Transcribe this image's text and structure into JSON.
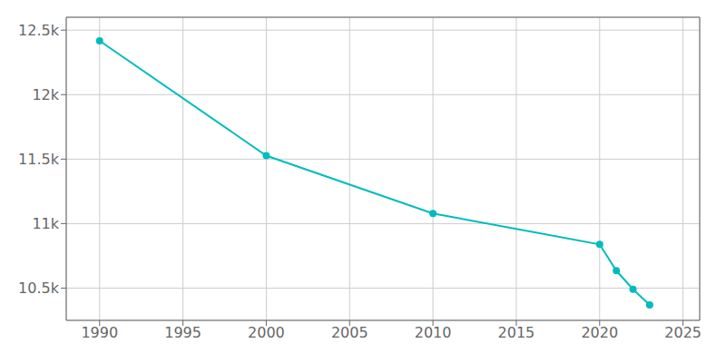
{
  "chart_data": {
    "type": "line",
    "x": [
      1990,
      2000,
      2010,
      2020,
      2021,
      2022,
      2023
    ],
    "values": [
      12417,
      11527,
      11079,
      10839,
      10635,
      10491,
      10370
    ],
    "color": "#00BBBF",
    "marker": "circle",
    "xlim": [
      1988,
      2026
    ],
    "ylim": [
      10250,
      12600
    ],
    "xticks": [
      1990,
      1995,
      2000,
      2005,
      2010,
      2015,
      2020,
      2025
    ],
    "yticks": [
      {
        "value": 10500,
        "label": "10.5k"
      },
      {
        "value": 11000,
        "label": "11k"
      },
      {
        "value": 11500,
        "label": "11.5k"
      },
      {
        "value": 12000,
        "label": "12k"
      },
      {
        "value": 12500,
        "label": "12.5k"
      }
    ],
    "grid": true
  }
}
